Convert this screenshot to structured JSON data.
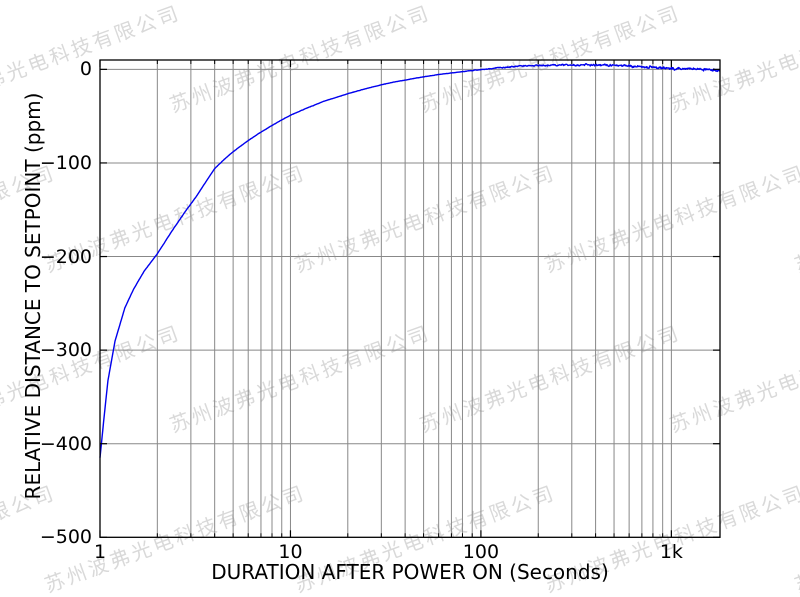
{
  "watermark": {
    "text": "苏州波弗光电科技有限公司",
    "color": "#d9d9d9"
  },
  "chart_data": {
    "type": "line",
    "xlabel": "DURATION AFTER POWER ON (Seconds)",
    "ylabel": "RELATIVE DISTANCE TO SETPOINT (ppm)",
    "x_scale": "log",
    "xlim": [
      1,
      1800
    ],
    "ylim": [
      -500,
      10
    ],
    "grid": true,
    "legend": "none",
    "x_ticks": {
      "values": [
        1,
        10,
        100,
        1000
      ],
      "labels": [
        "1",
        "10",
        "100",
        "1k"
      ],
      "minor_values": [
        2,
        3,
        4,
        5,
        6,
        7,
        8,
        9,
        20,
        30,
        40,
        50,
        60,
        70,
        80,
        90,
        200,
        300,
        400,
        500,
        600,
        700,
        800,
        900
      ]
    },
    "y_ticks": {
      "values": [
        0,
        -100,
        -200,
        -300,
        -400,
        -500
      ],
      "labels": [
        "0",
        "−100",
        "−200",
        "−300",
        "−400",
        "−500"
      ]
    },
    "colors": {
      "line": "#0000ee",
      "grid": "#888888",
      "frame": "#000000",
      "background": "#ffffff"
    },
    "series": [
      {
        "name": "relative distance to setpoint",
        "points": [
          [
            1,
            -415
          ],
          [
            1.05,
            -372
          ],
          [
            1.1,
            -333
          ],
          [
            1.2,
            -290
          ],
          [
            1.35,
            -255
          ],
          [
            1.5,
            -235
          ],
          [
            1.7,
            -216
          ],
          [
            2,
            -197
          ],
          [
            2.4,
            -172
          ],
          [
            2.8,
            -152
          ],
          [
            3.2,
            -136
          ],
          [
            3.6,
            -120
          ],
          [
            4,
            -106
          ],
          [
            4.5,
            -96
          ],
          [
            5,
            -88
          ],
          [
            6,
            -76
          ],
          [
            7,
            -67
          ],
          [
            8,
            -60
          ],
          [
            9,
            -54
          ],
          [
            10,
            -49
          ],
          [
            12,
            -42
          ],
          [
            15,
            -34
          ],
          [
            18,
            -29
          ],
          [
            20,
            -26
          ],
          [
            25,
            -20.5
          ],
          [
            30,
            -16.5
          ],
          [
            35,
            -13.5
          ],
          [
            40,
            -11.5
          ],
          [
            45,
            -9.5
          ],
          [
            50,
            -8
          ],
          [
            60,
            -5.5
          ],
          [
            70,
            -3.8
          ],
          [
            80,
            -2.5
          ],
          [
            90,
            -1.2
          ],
          [
            100,
            -0.3
          ],
          [
            110,
            0.5
          ],
          [
            130,
            2
          ],
          [
            160,
            3.4
          ],
          [
            200,
            4.2
          ],
          [
            250,
            4.7
          ],
          [
            300,
            4.8
          ],
          [
            400,
            4.6
          ],
          [
            500,
            4.2
          ],
          [
            600,
            3.6
          ],
          [
            700,
            2.8
          ],
          [
            800,
            2.2
          ],
          [
            900,
            1.7
          ],
          [
            1000,
            1.2
          ],
          [
            1200,
            0.6
          ],
          [
            1400,
            0.3
          ],
          [
            1600,
            -0.5
          ],
          [
            1800,
            -1.3
          ]
        ],
        "noise_ppm_after_100s": 2.5
      }
    ]
  }
}
